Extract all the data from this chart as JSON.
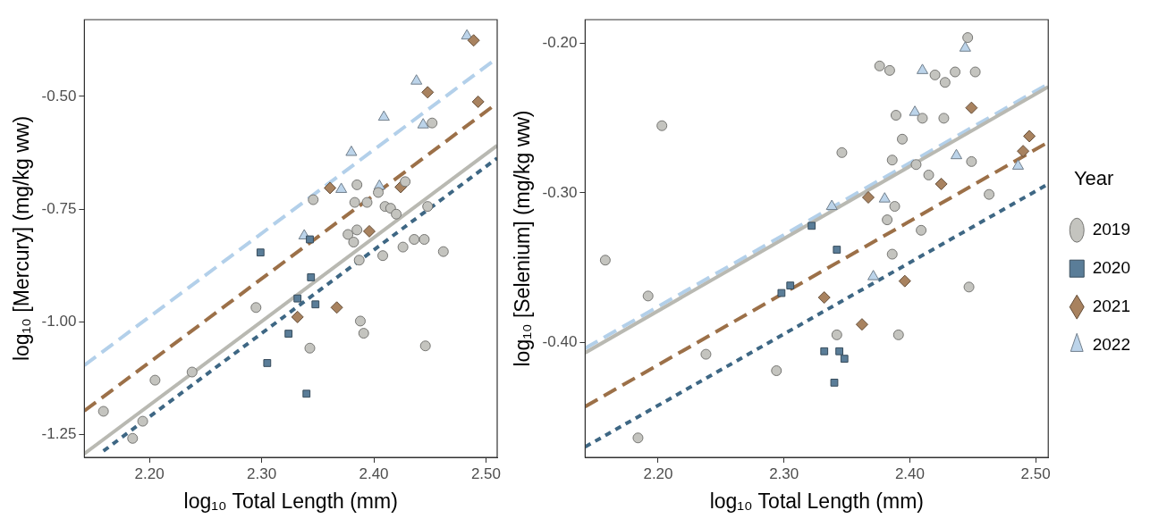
{
  "chart_data": [
    {
      "type": "scatter",
      "xlabel": "log₁₀ Total Length (mm)",
      "ylabel": "log₁₀ [Mercury] (mg/kg ww)",
      "xlim": [
        2.142,
        2.51
      ],
      "ylim": [
        -1.3,
        -0.33
      ],
      "xticks": [
        {
          "value": 2.2,
          "label": "2.20"
        },
        {
          "value": 2.3,
          "label": "2.30"
        },
        {
          "value": 2.4,
          "label": "2.40"
        },
        {
          "value": 2.5,
          "label": "2.50"
        }
      ],
      "yticks": [
        {
          "value": -1.25,
          "label": "-1.25"
        },
        {
          "value": -1.0,
          "label": "-1.00"
        },
        {
          "value": -0.75,
          "label": "-0.75"
        },
        {
          "value": -0.5,
          "label": "-0.50"
        }
      ],
      "grid": false,
      "legend": false,
      "series": [
        {
          "type": "line",
          "color": "#b9b9b2",
          "line_style": "solid",
          "x": [
            2.142,
            2.51
          ],
          "values": [
            -1.292,
            -0.609
          ]
        },
        {
          "type": "line",
          "color": "#3e6784",
          "line_style": "dotted",
          "x": [
            2.159,
            2.51
          ],
          "values": [
            -1.286,
            -0.637
          ]
        },
        {
          "type": "line",
          "color": "#9c7048",
          "line_style": "dashed",
          "x": [
            2.142,
            2.51
          ],
          "values": [
            -1.197,
            -0.515
          ]
        },
        {
          "type": "line",
          "color": "#b3d0ea",
          "line_style": "dashed",
          "x": [
            2.142,
            2.51
          ],
          "values": [
            -1.096,
            -0.415
          ]
        },
        {
          "type": "scatter",
          "color": "#c4c4bf",
          "marker": "circle",
          "x": [
            2.159,
            2.185,
            2.194,
            2.205,
            2.238,
            2.295,
            2.452,
            2.385,
            2.346,
            2.383,
            2.394,
            2.404,
            2.428,
            2.41,
            2.415,
            2.42,
            2.448,
            2.377,
            2.385,
            2.382,
            2.387,
            2.408,
            2.426,
            2.436,
            2.445,
            2.462,
            2.388,
            2.391,
            2.343,
            2.446
          ],
          "values": [
            -1.198,
            -1.258,
            -1.22,
            -1.129,
            -1.111,
            -0.968,
            -0.559,
            -0.696,
            -0.729,
            -0.735,
            -0.735,
            -0.713,
            -0.689,
            -0.744,
            -0.748,
            -0.761,
            -0.744,
            -0.806,
            -0.796,
            -0.823,
            -0.863,
            -0.853,
            -0.834,
            -0.817,
            -0.817,
            -0.844,
            -0.998,
            -1.025,
            -1.058,
            -1.053
          ]
        },
        {
          "type": "scatter",
          "color": "#5a7d98",
          "marker": "square",
          "x": [
            2.299,
            2.305,
            2.324,
            2.343,
            2.344,
            2.332,
            2.348,
            2.34
          ],
          "values": [
            -0.846,
            -1.091,
            -1.026,
            -0.817,
            -0.901,
            -0.948,
            -0.961,
            -1.159
          ]
        },
        {
          "type": "scatter",
          "color": "#a8825f",
          "marker": "diamond",
          "x": [
            2.448,
            2.361,
            2.424,
            2.396,
            2.367,
            2.332,
            2.489,
            2.493
          ],
          "values": [
            -0.491,
            -0.703,
            -0.701,
            -0.799,
            -0.968,
            -0.989,
            -0.376,
            -0.512
          ]
        },
        {
          "type": "scatter",
          "color": "#bcd4ea",
          "marker": "triangle",
          "x": [
            2.483,
            2.438,
            2.409,
            2.444,
            2.38,
            2.371,
            2.405,
            2.338
          ],
          "values": [
            -0.366,
            -0.466,
            -0.546,
            -0.563,
            -0.624,
            -0.706,
            -0.699,
            -0.809
          ]
        }
      ]
    },
    {
      "type": "scatter",
      "xlabel": "log₁₀ Total Length (mm)",
      "ylabel": "log₁₀ [Selenium] (mg/kg ww)",
      "legend_title": "Year",
      "xlim": [
        2.142,
        2.51
      ],
      "ylim": [
        -0.477,
        -0.184
      ],
      "xticks": [
        {
          "value": 2.2,
          "label": "2.20"
        },
        {
          "value": 2.3,
          "label": "2.30"
        },
        {
          "value": 2.4,
          "label": "2.40"
        },
        {
          "value": 2.5,
          "label": "2.50"
        }
      ],
      "yticks": [
        {
          "value": -0.4,
          "label": "-0.40"
        },
        {
          "value": -0.3,
          "label": "-0.30"
        },
        {
          "value": -0.2,
          "label": "-0.20"
        }
      ],
      "grid": false,
      "legend": "right",
      "series": [
        {
          "type": "line",
          "color": "#b9b9b2",
          "line_style": "solid",
          "x": [
            2.142,
            2.51
          ],
          "values": [
            -0.407,
            -0.229
          ]
        },
        {
          "type": "line",
          "color": "#3e6784",
          "line_style": "dotted",
          "x": [
            2.142,
            2.51
          ],
          "values": [
            -0.47,
            -0.294
          ]
        },
        {
          "type": "line",
          "color": "#9c7048",
          "line_style": "dashed",
          "x": [
            2.142,
            2.51
          ],
          "values": [
            -0.443,
            -0.266
          ]
        },
        {
          "type": "line",
          "color": "#b3d0ea",
          "line_style": "dashed",
          "x": [
            2.142,
            2.51
          ],
          "values": [
            -0.404,
            -0.227
          ]
        },
        {
          "type": "scatter",
          "name": "2019",
          "color": "#c4c4bf",
          "marker": "circle",
          "x": [
            2.203,
            2.158,
            2.192,
            2.238,
            2.294,
            2.184,
            2.446,
            2.376,
            2.384,
            2.42,
            2.428,
            2.436,
            2.452,
            2.389,
            2.41,
            2.427,
            2.394,
            2.346,
            2.449,
            2.386,
            2.405,
            2.415,
            2.463,
            2.388,
            2.382,
            2.409,
            2.386,
            2.447,
            2.342,
            2.391
          ],
          "values": [
            -0.255,
            -0.345,
            -0.369,
            -0.408,
            -0.419,
            -0.464,
            -0.196,
            -0.215,
            -0.218,
            -0.221,
            -0.226,
            -0.219,
            -0.219,
            -0.248,
            -0.25,
            -0.25,
            -0.264,
            -0.273,
            -0.279,
            -0.278,
            -0.281,
            -0.288,
            -0.301,
            -0.309,
            -0.318,
            -0.325,
            -0.341,
            -0.363,
            -0.395,
            -0.395
          ]
        },
        {
          "type": "scatter",
          "name": "2020",
          "color": "#5a7d98",
          "marker": "square",
          "x": [
            2.298,
            2.305,
            2.322,
            2.342,
            2.332,
            2.344,
            2.348,
            2.34
          ],
          "values": [
            -0.367,
            -0.362,
            -0.322,
            -0.338,
            -0.406,
            -0.406,
            -0.411,
            -0.427
          ]
        },
        {
          "type": "scatter",
          "name": "2021",
          "color": "#a8825f",
          "marker": "diamond",
          "x": [
            2.449,
            2.495,
            2.49,
            2.425,
            2.367,
            2.396,
            2.332,
            2.362
          ],
          "values": [
            -0.243,
            -0.262,
            -0.272,
            -0.294,
            -0.303,
            -0.359,
            -0.37,
            -0.388
          ]
        },
        {
          "type": "scatter",
          "name": "2022",
          "color": "#bcd4ea",
          "marker": "triangle",
          "x": [
            2.444,
            2.41,
            2.404,
            2.437,
            2.486,
            2.38,
            2.338,
            2.371
          ],
          "values": [
            -0.203,
            -0.218,
            -0.246,
            -0.275,
            -0.282,
            -0.304,
            -0.309,
            -0.356
          ]
        }
      ]
    }
  ]
}
